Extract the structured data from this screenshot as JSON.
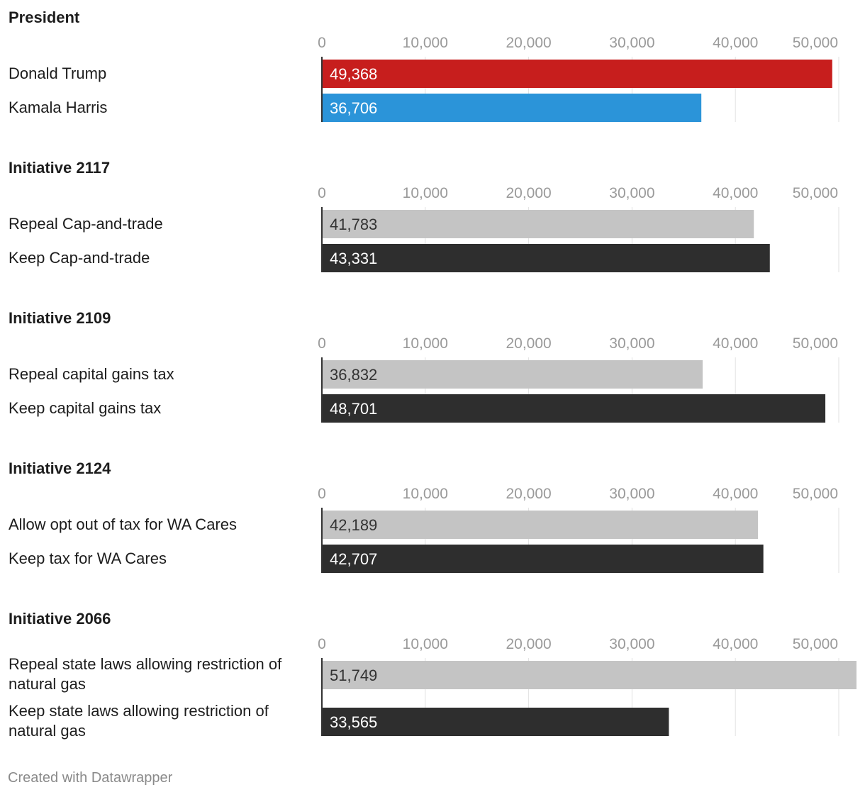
{
  "chart_data": [
    {
      "type": "bar",
      "orientation": "horizontal",
      "title": "President",
      "xlim": [
        0,
        50000
      ],
      "ticks": [
        0,
        10000,
        20000,
        30000,
        40000,
        50000
      ],
      "tick_labels": [
        "0",
        "10,000",
        "20,000",
        "30,000",
        "40,000",
        "50,000"
      ],
      "categories": [
        [
          "Donald Trump"
        ],
        [
          "Kamala Harris"
        ]
      ],
      "values": [
        49368,
        36706
      ],
      "value_labels": [
        "49,368",
        "36,706"
      ],
      "colors": [
        "#c71e1d",
        "#2b94d9"
      ],
      "label_colors": [
        "#ffffff",
        "#ffffff"
      ]
    },
    {
      "type": "bar",
      "orientation": "horizontal",
      "title": "Initiative 2117",
      "xlim": [
        0,
        50000
      ],
      "ticks": [
        0,
        10000,
        20000,
        30000,
        40000,
        50000
      ],
      "tick_labels": [
        "0",
        "10,000",
        "20,000",
        "30,000",
        "40,000",
        "50,000"
      ],
      "categories": [
        [
          "Repeal Cap-and-trade"
        ],
        [
          "Keep Cap-and-trade"
        ]
      ],
      "values": [
        41783,
        43331
      ],
      "value_labels": [
        "41,783",
        "43,331"
      ],
      "colors": [
        "#c4c4c4",
        "#2e2e2e"
      ],
      "label_colors": [
        "#333333",
        "#ffffff"
      ]
    },
    {
      "type": "bar",
      "orientation": "horizontal",
      "title": "Initiative 2109",
      "xlim": [
        0,
        50000
      ],
      "ticks": [
        0,
        10000,
        20000,
        30000,
        40000,
        50000
      ],
      "tick_labels": [
        "0",
        "10,000",
        "20,000",
        "30,000",
        "40,000",
        "50,000"
      ],
      "categories": [
        [
          "Repeal capital gains tax"
        ],
        [
          "Keep capital gains tax"
        ]
      ],
      "values": [
        36832,
        48701
      ],
      "value_labels": [
        "36,832",
        "48,701"
      ],
      "colors": [
        "#c4c4c4",
        "#2e2e2e"
      ],
      "label_colors": [
        "#333333",
        "#ffffff"
      ]
    },
    {
      "type": "bar",
      "orientation": "horizontal",
      "title": "Initiative 2124",
      "xlim": [
        0,
        50000
      ],
      "ticks": [
        0,
        10000,
        20000,
        30000,
        40000,
        50000
      ],
      "tick_labels": [
        "0",
        "10,000",
        "20,000",
        "30,000",
        "40,000",
        "50,000"
      ],
      "categories": [
        [
          "Allow opt out of tax for WA Cares"
        ],
        [
          "Keep tax for WA Cares"
        ]
      ],
      "values": [
        42189,
        42707
      ],
      "value_labels": [
        "42,189",
        "42,707"
      ],
      "colors": [
        "#c4c4c4",
        "#2e2e2e"
      ],
      "label_colors": [
        "#333333",
        "#ffffff"
      ]
    },
    {
      "type": "bar",
      "orientation": "horizontal",
      "title": "Initiative 2066",
      "xlim": [
        0,
        50000
      ],
      "ticks": [
        0,
        10000,
        20000,
        30000,
        40000,
        50000
      ],
      "tick_labels": [
        "0",
        "10,000",
        "20,000",
        "30,000",
        "40,000",
        "50,000"
      ],
      "categories": [
        [
          "Repeal state laws allowing restriction of",
          "natural gas"
        ],
        [
          "Keep state laws allowing restriction of",
          "natural gas"
        ]
      ],
      "values": [
        51749,
        33565
      ],
      "value_labels": [
        "51,749",
        "33,565"
      ],
      "colors": [
        "#c4c4c4",
        "#2e2e2e"
      ],
      "label_colors": [
        "#333333",
        "#ffffff"
      ]
    }
  ],
  "footer": "Created with Datawrapper"
}
